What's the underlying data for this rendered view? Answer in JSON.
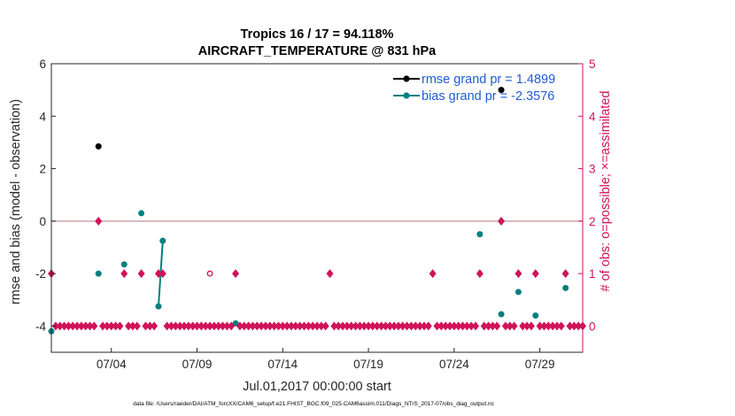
{
  "chart_data": {
    "type": "scatter",
    "title_line1": "Tropics 16 / 17 = 94.118%",
    "title_line2": "AIRCRAFT_TEMPERATURE @ 831 hPa",
    "ylabel_left": "rmse and bias (model - observation)",
    "ylabel_right": "# of obs: o=possible; ×=assimilated",
    "xlabel": "Jul.01,2017 00:00:00 start",
    "footer": "data file: /Users/raeder/DAI/ATM_forcXX/CAM6_setup/f.e21.FHIST_BGC.f09_025.CAM6assim.011/Diags_NTrS_2017-07/obs_diag_output.nc",
    "xlim": [
      0.5,
      31.5
    ],
    "ylim_left": [
      -5,
      6
    ],
    "ylim_right": [
      -0.5,
      5
    ],
    "yticks_left": [
      -4,
      -2,
      0,
      2,
      4,
      6
    ],
    "yticks_right": [
      0,
      1,
      2,
      3,
      4,
      5
    ],
    "xticks": [
      {
        "value": 4,
        "label": "07/04"
      },
      {
        "value": 9,
        "label": "07/09"
      },
      {
        "value": 14,
        "label": "07/14"
      },
      {
        "value": 19,
        "label": "07/19"
      },
      {
        "value": 24,
        "label": "07/24"
      },
      {
        "value": 29,
        "label": "07/29"
      }
    ],
    "zero_line": 0,
    "legend": [
      {
        "label": "rmse grand pr = 1.4899",
        "color": "#000000"
      },
      {
        "label": "bias grand pr = -2.3576",
        "color": "#008080"
      }
    ],
    "series": [
      {
        "name": "rmse",
        "color": "#000000",
        "axis": "left",
        "points": [
          [
            3.25,
            2.85
          ],
          [
            26.75,
            5.0
          ]
        ]
      },
      {
        "name": "bias",
        "color": "#008080",
        "axis": "left",
        "points": [
          [
            0.5,
            -4.2
          ],
          [
            3.25,
            -2.0
          ],
          [
            4.75,
            -1.65
          ],
          [
            5.75,
            0.3
          ],
          [
            6.75,
            -3.25
          ],
          [
            7.0,
            -0.75
          ],
          [
            11.25,
            -3.9
          ],
          [
            25.5,
            -0.5
          ],
          [
            26.75,
            -3.55
          ],
          [
            27.75,
            -2.7
          ],
          [
            28.75,
            -3.6
          ],
          [
            30.5,
            -2.55
          ]
        ],
        "segments": [
          [
            [
              6.75,
              -3.25
            ],
            [
              7.0,
              -0.75
            ]
          ]
        ]
      },
      {
        "name": "obs_assimilated",
        "color": "#d0135a",
        "axis": "right",
        "marker": "x",
        "points": [
          [
            0.5,
            1
          ],
          [
            3.25,
            2
          ],
          [
            4.75,
            1
          ],
          [
            5.75,
            1
          ],
          [
            6.75,
            1
          ],
          [
            7.0,
            1
          ],
          [
            11.25,
            1
          ],
          [
            16.75,
            1
          ],
          [
            22.75,
            1
          ],
          [
            25.5,
            1
          ],
          [
            26.75,
            2
          ],
          [
            27.75,
            1
          ],
          [
            28.75,
            1
          ],
          [
            30.5,
            1
          ]
        ],
        "zero_days_start": 0.5,
        "zero_days_end": 31.5,
        "zero_days_step": 0.25
      },
      {
        "name": "obs_possible",
        "color": "#d0135a",
        "axis": "right",
        "marker": "o",
        "points": [
          [
            9.75,
            1
          ]
        ]
      }
    ]
  }
}
